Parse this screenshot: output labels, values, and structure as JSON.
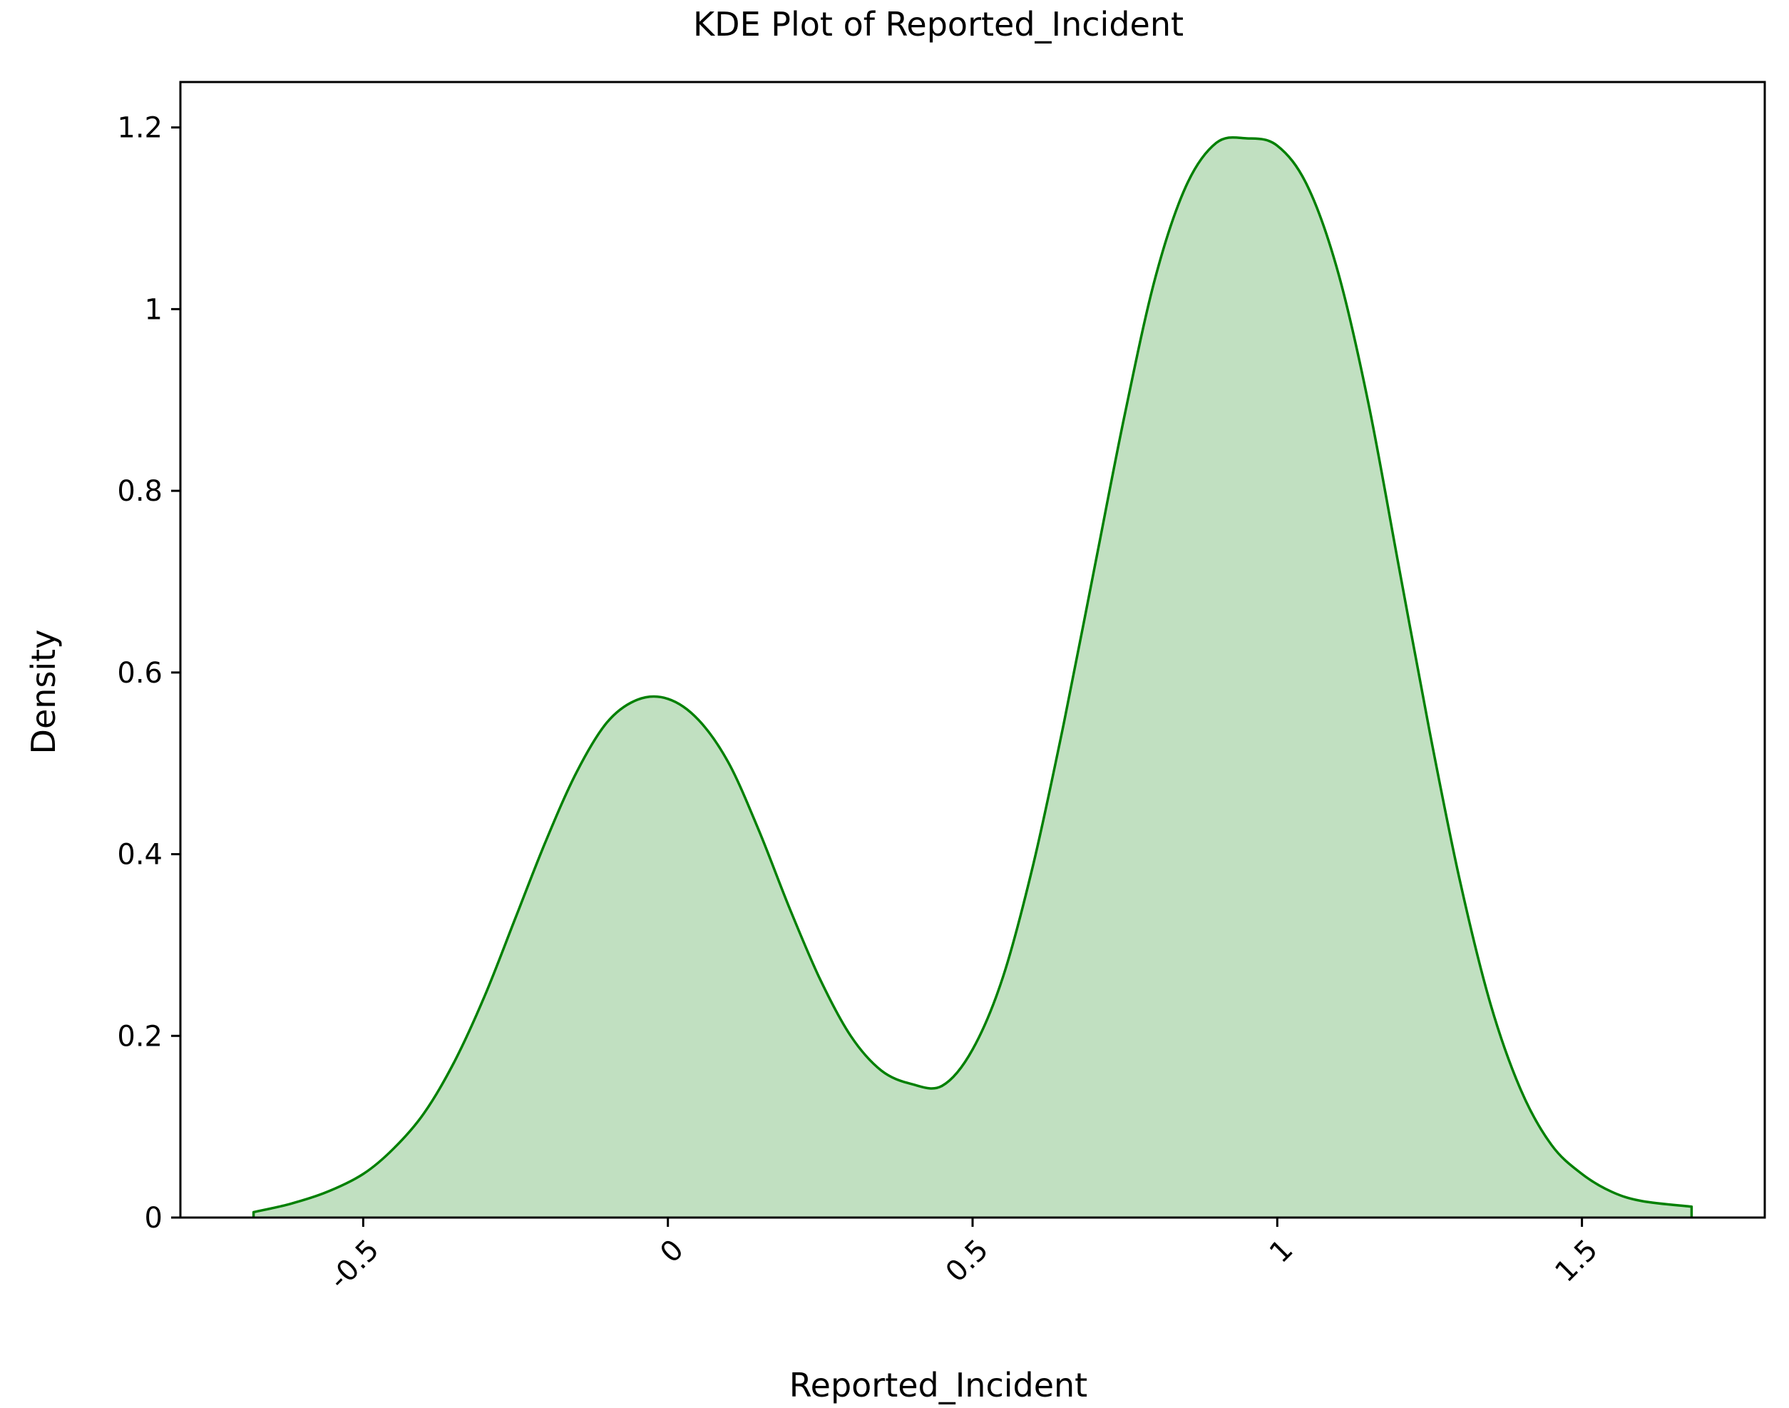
{
  "chart_data": {
    "type": "area",
    "title": "KDE Plot of Reported_Incident",
    "xlabel": "Reported_Incident",
    "ylabel": "Density",
    "xlim": [
      -0.8,
      1.8
    ],
    "ylim": [
      0,
      1.25
    ],
    "x_ticks": [
      -0.5,
      0,
      0.5,
      1,
      1.5
    ],
    "x_tick_labels": [
      "-0.5",
      "0",
      "0.5",
      "1",
      "1.5"
    ],
    "x_tick_rotation": -45,
    "y_ticks": [
      0,
      0.2,
      0.4,
      0.6,
      0.8,
      1.0,
      1.2
    ],
    "y_tick_labels": [
      "0",
      "0.2",
      "0.4",
      "0.6",
      "0.8",
      "1",
      "1.2"
    ],
    "grid": false,
    "legend": null,
    "series": [
      {
        "line_color": "#008000",
        "fill_color": "#c1e0c1",
        "x": [
          -0.68,
          -0.62,
          -0.56,
          -0.5,
          -0.45,
          -0.4,
          -0.35,
          -0.3,
          -0.25,
          -0.2,
          -0.15,
          -0.1,
          -0.05,
          0.0,
          0.05,
          0.1,
          0.15,
          0.2,
          0.25,
          0.3,
          0.35,
          0.4,
          0.45,
          0.5,
          0.55,
          0.6,
          0.65,
          0.7,
          0.75,
          0.8,
          0.85,
          0.9,
          0.95,
          1.0,
          1.05,
          1.1,
          1.15,
          1.2,
          1.25,
          1.3,
          1.35,
          1.4,
          1.45,
          1.5,
          1.55,
          1.6,
          1.68
        ],
        "y": [
          0.006,
          0.015,
          0.028,
          0.048,
          0.076,
          0.115,
          0.172,
          0.245,
          0.33,
          0.415,
          0.49,
          0.545,
          0.57,
          0.571,
          0.548,
          0.5,
          0.425,
          0.34,
          0.262,
          0.2,
          0.162,
          0.147,
          0.145,
          0.185,
          0.265,
          0.39,
          0.545,
          0.715,
          0.885,
          1.035,
          1.135,
          1.183,
          1.188,
          1.18,
          1.135,
          1.04,
          0.895,
          0.715,
          0.535,
          0.37,
          0.235,
          0.14,
          0.08,
          0.048,
          0.028,
          0.018,
          0.012
        ]
      }
    ]
  }
}
